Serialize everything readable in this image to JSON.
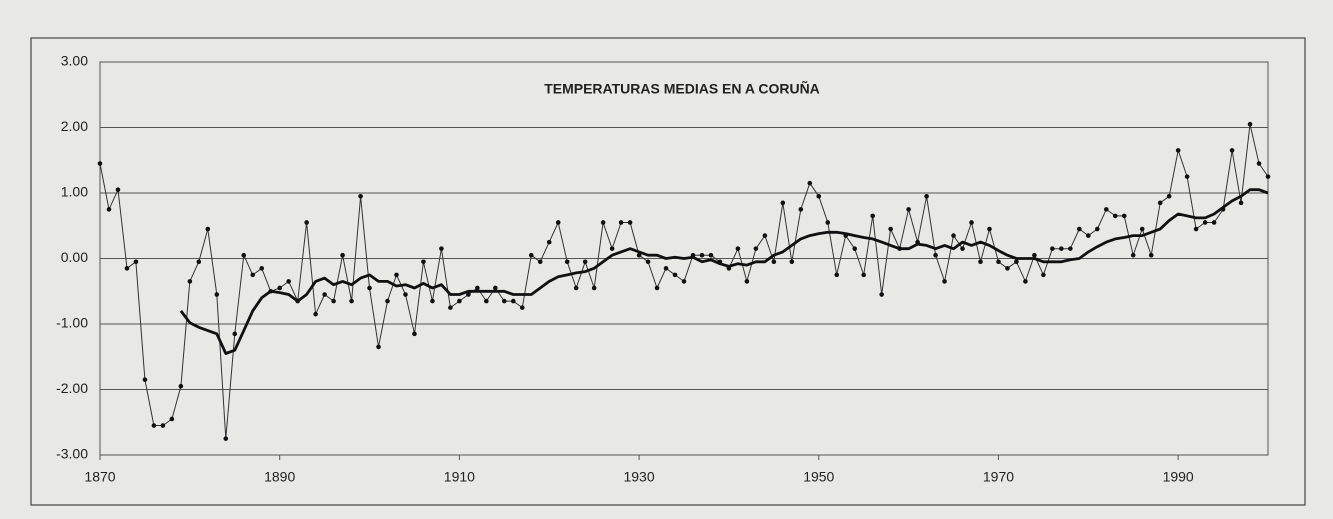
{
  "chart_data": {
    "type": "line",
    "title": "TEMPERATURAS MEDIAS EN A CORUÑA",
    "x": [
      1870,
      1871,
      1872,
      1873,
      1874,
      1875,
      1876,
      1877,
      1878,
      1879,
      1880,
      1881,
      1882,
      1883,
      1884,
      1885,
      1886,
      1887,
      1888,
      1889,
      1890,
      1891,
      1892,
      1893,
      1894,
      1895,
      1896,
      1897,
      1898,
      1899,
      1900,
      1901,
      1902,
      1903,
      1904,
      1905,
      1906,
      1907,
      1908,
      1909,
      1910,
      1911,
      1912,
      1913,
      1914,
      1915,
      1916,
      1917,
      1918,
      1919,
      1920,
      1921,
      1922,
      1923,
      1924,
      1925,
      1926,
      1927,
      1928,
      1929,
      1930,
      1931,
      1932,
      1933,
      1934,
      1935,
      1936,
      1937,
      1938,
      1939,
      1940,
      1941,
      1942,
      1943,
      1944,
      1945,
      1946,
      1947,
      1948,
      1949,
      1950,
      1951,
      1952,
      1953,
      1954,
      1955,
      1956,
      1957,
      1958,
      1959,
      1960,
      1961,
      1962,
      1963,
      1964,
      1965,
      1966,
      1967,
      1968,
      1969,
      1970,
      1971,
      1972,
      1973,
      1974,
      1975,
      1976,
      1977,
      1978,
      1979,
      1980,
      1981,
      1982,
      1983,
      1984,
      1985,
      1986,
      1987,
      1988,
      1989,
      1990,
      1991,
      1992,
      1993,
      1994,
      1995,
      1996,
      1997,
      1998,
      1999,
      2000
    ],
    "series": [
      {
        "color": "#333333",
        "values": [
          1.45,
          0.75,
          1.05,
          -0.15,
          -0.05,
          -1.85,
          -2.55,
          -2.55,
          -2.45,
          -1.95,
          -0.35,
          -0.05,
          0.45,
          -0.55,
          -2.75,
          -1.15,
          0.05,
          -0.25,
          -0.15,
          -0.5,
          -0.45,
          -0.35,
          -0.65,
          0.55,
          -0.85,
          -0.55,
          -0.65,
          0.05,
          -0.65,
          0.95,
          -0.45,
          -1.35,
          -0.65,
          -0.25,
          -0.55,
          -1.15,
          -0.05,
          -0.65,
          0.15,
          -0.75,
          -0.65,
          -0.55,
          -0.45,
          -0.65,
          -0.45,
          -0.65,
          -0.65,
          -0.75,
          0.05,
          -0.05,
          0.25,
          0.55,
          -0.05,
          -0.45,
          -0.05,
          -0.45,
          0.55,
          0.15,
          0.55,
          0.55,
          0.05,
          -0.05,
          -0.45,
          -0.15,
          -0.25,
          -0.35,
          0.05,
          0.05,
          0.05,
          -0.05,
          -0.15,
          0.15,
          -0.35,
          0.15,
          0.35,
          -0.05,
          0.85,
          -0.05,
          0.75,
          1.15,
          0.95,
          0.55,
          -0.25,
          0.35,
          0.15,
          -0.25,
          0.65,
          -0.55,
          0.45,
          0.15,
          0.75,
          0.25,
          0.95,
          0.05,
          -0.35,
          0.35,
          0.15,
          0.55,
          -0.05,
          0.45,
          -0.05,
          -0.15,
          -0.05,
          -0.35,
          0.05,
          -0.25,
          0.15,
          0.15,
          0.15,
          0.45,
          0.35,
          0.45,
          0.75,
          0.65,
          0.65,
          0.05,
          0.45,
          0.05,
          0.85,
          0.95,
          1.65,
          1.25,
          0.45,
          0.55,
          0.55,
          0.75,
          1.65,
          0.85,
          2.05,
          1.45,
          1.25
        ]
      },
      {
        "color": "#111111",
        "values": [
          null,
          null,
          null,
          null,
          null,
          null,
          null,
          null,
          null,
          -0.8,
          -0.98,
          -1.05,
          -1.1,
          -1.15,
          -1.45,
          -1.4,
          -1.1,
          -0.8,
          -0.6,
          -0.5,
          -0.52,
          -0.55,
          -0.65,
          -0.55,
          -0.35,
          -0.3,
          -0.4,
          -0.35,
          -0.4,
          -0.3,
          -0.25,
          -0.35,
          -0.35,
          -0.42,
          -0.4,
          -0.45,
          -0.38,
          -0.45,
          -0.4,
          -0.55,
          -0.55,
          -0.5,
          -0.5,
          -0.5,
          -0.5,
          -0.5,
          -0.55,
          -0.55,
          -0.55,
          -0.45,
          -0.35,
          -0.28,
          -0.25,
          -0.22,
          -0.2,
          -0.15,
          -0.05,
          0.05,
          0.1,
          0.15,
          0.1,
          0.05,
          0.05,
          0.0,
          0.02,
          0.0,
          0.02,
          -0.05,
          -0.02,
          -0.08,
          -0.12,
          -0.08,
          -0.1,
          -0.05,
          -0.05,
          0.05,
          0.1,
          0.2,
          0.3,
          0.35,
          0.38,
          0.4,
          0.4,
          0.38,
          0.35,
          0.32,
          0.3,
          0.25,
          0.2,
          0.15,
          0.15,
          0.22,
          0.2,
          0.15,
          0.2,
          0.15,
          0.25,
          0.2,
          0.25,
          0.2,
          0.12,
          0.05,
          0.0,
          0.0,
          0.0,
          -0.05,
          -0.05,
          -0.05,
          -0.02,
          0.0,
          0.1,
          0.18,
          0.25,
          0.3,
          0.32,
          0.35,
          0.35,
          0.4,
          0.45,
          0.58,
          0.68,
          0.65,
          0.62,
          0.62,
          0.68,
          0.78,
          0.88,
          0.95,
          1.05,
          1.05,
          1.0
        ]
      }
    ],
    "xlim": [
      1870,
      2000
    ],
    "xticks": [
      1870,
      1890,
      1910,
      1930,
      1950,
      1970,
      1990
    ],
    "ylim": [
      -3,
      3
    ],
    "yticks": [
      {
        "value": 3,
        "label": "3.00"
      },
      {
        "value": 2,
        "label": "2.00"
      },
      {
        "value": 1,
        "label": "1.00"
      },
      {
        "value": 0,
        "label": "0.00"
      },
      {
        "value": -1,
        "label": "-1.00"
      },
      {
        "value": -2,
        "label": "-2.00"
      },
      {
        "value": -3,
        "label": "-3.00"
      }
    ],
    "grid": true
  }
}
